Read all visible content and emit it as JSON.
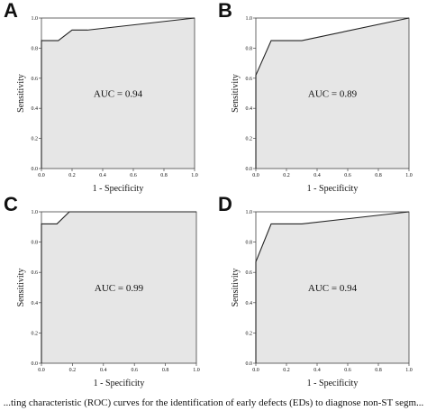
{
  "caption": "...ting characteristic (ROC) curves for the identification of early defects (EDs) to diagnose non-ST segm...",
  "chart_data": [
    {
      "type": "line",
      "panel": "A",
      "annotation": "AUC = 0.94",
      "xlabel": "1 - Specificity",
      "ylabel": "Sensitivity",
      "xlim": [
        0,
        1
      ],
      "ylim": [
        0,
        1
      ],
      "xticks": [
        "0.0",
        "0.2",
        "0.4",
        "0.6",
        "0.8",
        "1.0"
      ],
      "yticks": [
        "0.0",
        "0.2",
        "0.4",
        "0.6",
        "0.8",
        "1.0"
      ],
      "x": [
        0,
        0,
        0.11,
        0.2,
        0.3,
        1.0
      ],
      "y": [
        0,
        0.85,
        0.85,
        0.92,
        0.92,
        1.0
      ]
    },
    {
      "type": "line",
      "panel": "B",
      "annotation": "AUC = 0.89",
      "xlabel": "1 - Specificity",
      "ylabel": "Sensitivity",
      "xlim": [
        0,
        1
      ],
      "ylim": [
        0,
        1
      ],
      "xticks": [
        "0.0",
        "0.2",
        "0.4",
        "0.6",
        "0.8",
        "1.0"
      ],
      "yticks": [
        "0.0",
        "0.2",
        "0.4",
        "0.6",
        "0.8",
        "1.0"
      ],
      "x": [
        0,
        0,
        0.1,
        0.3,
        1.0
      ],
      "y": [
        0,
        0.62,
        0.85,
        0.85,
        1.0
      ]
    },
    {
      "type": "line",
      "panel": "C",
      "annotation": "AUC = 0.99",
      "xlabel": "1 - Specificity",
      "ylabel": "Sensitivity",
      "xlim": [
        0,
        1
      ],
      "ylim": [
        0,
        1
      ],
      "xticks": [
        "0.0",
        "0.2",
        "0.4",
        "0.6",
        "0.8",
        "1.0"
      ],
      "yticks": [
        "0.0",
        "0.2",
        "0.4",
        "0.6",
        "0.8",
        "1.0"
      ],
      "x": [
        0,
        0,
        0.1,
        0.18,
        1.0
      ],
      "y": [
        0,
        0.92,
        0.92,
        1.0,
        1.0
      ]
    },
    {
      "type": "line",
      "panel": "D",
      "annotation": "AUC = 0.94",
      "xlabel": "1 - Specificity",
      "ylabel": "Sensitivity",
      "xlim": [
        0,
        1
      ],
      "ylim": [
        0,
        1
      ],
      "xticks": [
        "0.0",
        "0.2",
        "0.4",
        "0.6",
        "0.8",
        "1.0"
      ],
      "yticks": [
        "0.0",
        "0.2",
        "0.4",
        "0.6",
        "0.8",
        "1.0"
      ],
      "x": [
        0,
        0,
        0.1,
        0.3,
        1.0
      ],
      "y": [
        0,
        0.67,
        0.92,
        0.92,
        1.0
      ]
    }
  ]
}
